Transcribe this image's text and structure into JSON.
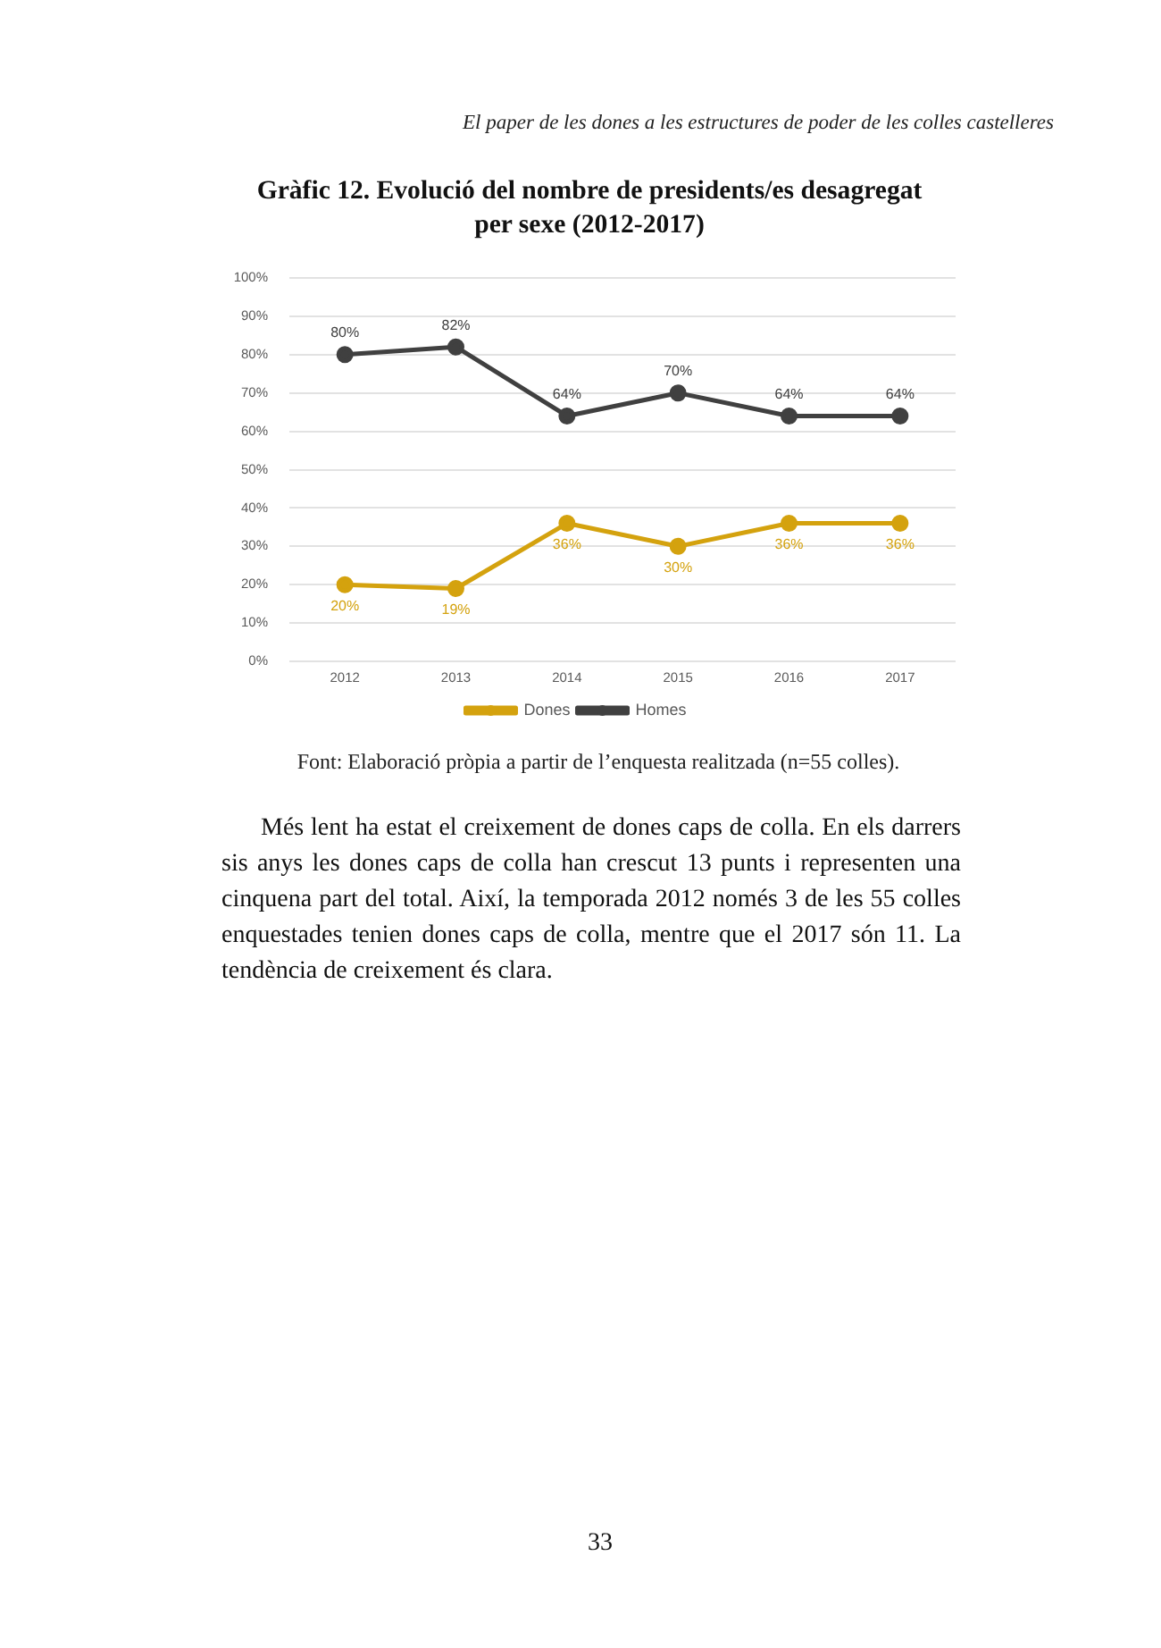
{
  "chart_data": {
    "type": "line",
    "title": "Gràfic 12. Evolució del nombre de presidents/es desagregat per sexe (2012-2017)",
    "categories": [
      "2012",
      "2013",
      "2014",
      "2015",
      "2016",
      "2017"
    ],
    "series": [
      {
        "name": "Dones",
        "color": "#d4a20e",
        "values": [
          20,
          19,
          36,
          30,
          36,
          36
        ],
        "value_labels": [
          "20%",
          "19%",
          "36%",
          "30%",
          "36%",
          "36%"
        ]
      },
      {
        "name": "Homes",
        "color": "#404040",
        "values": [
          80,
          82,
          64,
          70,
          64,
          64
        ],
        "value_labels": [
          "80%",
          "82%",
          "64%",
          "70%",
          "64%",
          "64%"
        ]
      }
    ],
    "ylim": [
      0,
      100
    ],
    "yticks": [
      {
        "value": 0,
        "label": "0%"
      },
      {
        "value": 10,
        "label": "10%"
      },
      {
        "value": 20,
        "label": "20%"
      },
      {
        "value": 30,
        "label": "30%"
      },
      {
        "value": 40,
        "label": "40%"
      },
      {
        "value": 50,
        "label": "50%"
      },
      {
        "value": 60,
        "label": "60%"
      },
      {
        "value": 70,
        "label": "70%"
      },
      {
        "value": 80,
        "label": "80%"
      },
      {
        "value": 90,
        "label": "90%"
      },
      {
        "value": 100,
        "label": "100%"
      }
    ],
    "grid": "y",
    "legend": "bottom",
    "marker": "circle",
    "line_style": "solid",
    "annotations": [
      "El paper de les dones a les estructures de poder de les colles castelleres",
      "Font: Elaboració pròpia a partir de l’enquesta realitzada (n=55 colles).",
      "Més lent ha estat el creixement de dones caps de colla. En els darrers sis anys les dones caps de colla han crescut 13 punts i representen una cinquena part del total. Així, la temporada 2012 només 3 de les 55 colles enquestades tenien dones caps de colla, mentre que el 2017 són 11. La tendència de creixement és clara.",
      "33"
    ]
  }
}
